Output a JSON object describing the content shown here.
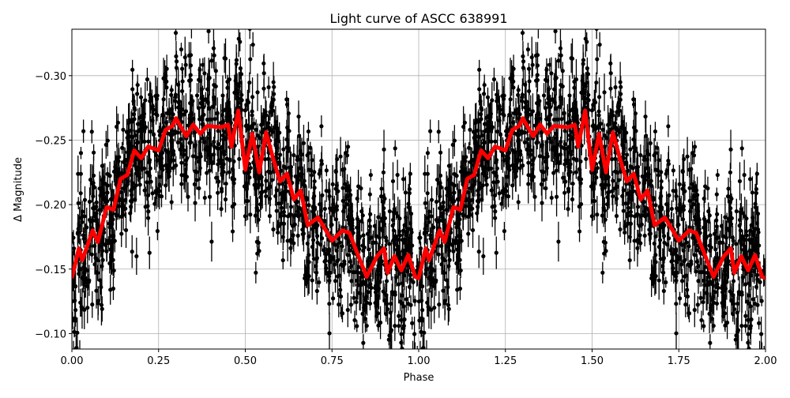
{
  "chart_data": {
    "type": "scatter",
    "title": "Light curve of ASCC 638991",
    "xlabel": "Phase",
    "ylabel": "Δ Magnitude",
    "xlim": [
      0,
      2
    ],
    "ylim": [
      -0.088,
      -0.336
    ],
    "y_inverted": true,
    "grid": true,
    "x_ticks": [
      "0.00",
      "0.25",
      "0.50",
      "0.75",
      "1.00",
      "1.25",
      "1.50",
      "1.75",
      "2.00"
    ],
    "y_ticks": [
      "−0.30",
      "−0.25",
      "−0.20",
      "−0.15",
      "−0.10"
    ],
    "y_tick_values": [
      -0.3,
      -0.25,
      -0.2,
      -0.15,
      -0.1
    ],
    "x_tick_values": [
      0,
      0.25,
      0.5,
      0.75,
      1.0,
      1.25,
      1.5,
      1.75,
      2.0
    ],
    "observations": {
      "color": "#000000",
      "marker": "circle",
      "error_bars": true
    },
    "binned_curve": {
      "color": "#ff0000",
      "period_repeat": true,
      "phase": [
        0.0,
        0.02,
        0.03,
        0.06,
        0.075,
        0.1,
        0.12,
        0.14,
        0.16,
        0.18,
        0.2,
        0.22,
        0.25,
        0.27,
        0.29,
        0.3,
        0.33,
        0.35,
        0.37,
        0.39,
        0.43,
        0.45,
        0.46,
        0.48,
        0.5,
        0.52,
        0.54,
        0.56,
        0.58,
        0.6,
        0.62,
        0.64,
        0.66,
        0.68,
        0.71,
        0.75,
        0.78,
        0.8,
        0.85,
        0.88,
        0.9,
        0.91,
        0.93,
        0.95,
        0.97,
        0.99,
        1.0
      ],
      "magnitude": [
        -0.143,
        -0.166,
        -0.157,
        -0.18,
        -0.171,
        -0.198,
        -0.196,
        -0.22,
        -0.223,
        -0.242,
        -0.236,
        -0.245,
        -0.242,
        -0.258,
        -0.261,
        -0.267,
        -0.253,
        -0.262,
        -0.255,
        -0.261,
        -0.26,
        -0.262,
        -0.245,
        -0.273,
        -0.227,
        -0.255,
        -0.225,
        -0.256,
        -0.236,
        -0.218,
        -0.224,
        -0.204,
        -0.211,
        -0.184,
        -0.19,
        -0.172,
        -0.18,
        -0.178,
        -0.144,
        -0.16,
        -0.166,
        -0.147,
        -0.16,
        -0.149,
        -0.161,
        -0.144,
        -0.143
      ]
    }
  }
}
